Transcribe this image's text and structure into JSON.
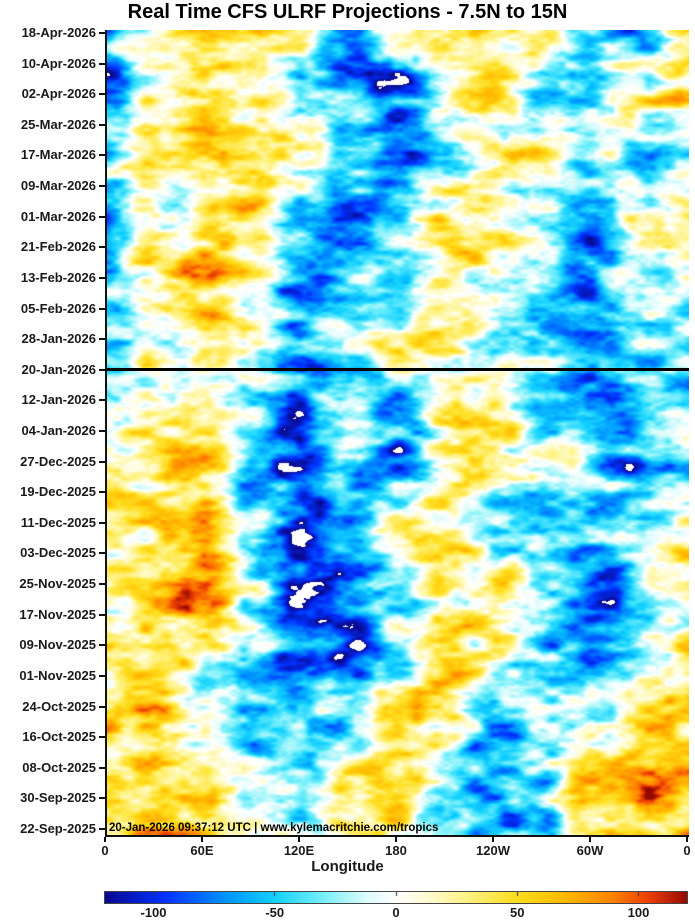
{
  "title": "Real Time CFS ULRF Projections - 7.5N to 15N",
  "watermark": "20-Jan-2026 09:37:12 UTC | www.kylemacritchie.com/tropics",
  "x_axis": {
    "label": "Longitude",
    "ticks": [
      "0",
      "60E",
      "120E",
      "180",
      "120W",
      "60W",
      "0"
    ]
  },
  "y_axis": {
    "ticks": [
      "18-Apr-2026",
      "10-Apr-2026",
      "02-Apr-2026",
      "25-Mar-2026",
      "17-Mar-2026",
      "09-Mar-2026",
      "01-Mar-2026",
      "21-Feb-2026",
      "13-Feb-2026",
      "05-Feb-2026",
      "28-Jan-2026",
      "20-Jan-2026",
      "12-Jan-2026",
      "04-Jan-2026",
      "27-Dec-2025",
      "19-Dec-2025",
      "11-Dec-2025",
      "03-Dec-2025",
      "25-Nov-2025",
      "17-Nov-2025",
      "09-Nov-2025",
      "01-Nov-2025",
      "24-Oct-2025",
      "16-Oct-2025",
      "08-Oct-2025",
      "30-Sep-2025",
      "22-Sep-2025"
    ]
  },
  "current_time_line": {
    "date": "20-Jan-2026",
    "color": "#000000"
  },
  "colorbar": {
    "tick_labels": [
      "-100",
      "-50",
      "0",
      "50",
      "100"
    ],
    "tick_values": [
      -100,
      -50,
      0,
      50,
      100
    ],
    "range": [
      -120,
      120
    ]
  },
  "colors": {
    "background": "#ffffff",
    "axis": "#111111",
    "text": "#1a1a1a",
    "negative_extreme": "#0a0a91",
    "negative_mid": "#14d2ff",
    "zero": "#ffffff",
    "positive_mid": "#ffde1e",
    "positive_extreme": "#960a00"
  },
  "chart_data": {
    "type": "heatmap",
    "title": "Real Time CFS ULRF Projections - 7.5N to 15N",
    "xlabel": "Longitude",
    "ylabel": "",
    "x_ticks": [
      "0",
      "60E",
      "120E",
      "180",
      "120W",
      "60W",
      "0"
    ],
    "x_range_degrees_east": [
      0,
      360
    ],
    "y_dates_top_to_bottom": [
      "18-Apr-2026",
      "10-Apr-2026",
      "02-Apr-2026",
      "25-Mar-2026",
      "17-Mar-2026",
      "09-Mar-2026",
      "01-Mar-2026",
      "21-Feb-2026",
      "13-Feb-2026",
      "05-Feb-2026",
      "28-Jan-2026",
      "20-Jan-2026",
      "12-Jan-2026",
      "04-Jan-2026",
      "27-Dec-2025",
      "19-Dec-2025",
      "11-Dec-2025",
      "03-Dec-2025",
      "25-Nov-2025",
      "17-Nov-2025",
      "09-Nov-2025",
      "01-Nov-2025",
      "24-Oct-2025",
      "16-Oct-2025",
      "08-Oct-2025",
      "30-Sep-2025",
      "22-Sep-2025"
    ],
    "y_tick_interval_days": 8,
    "current_time_marker": "20-Jan-2026",
    "grid": false,
    "legend_position": "bottom-colorbar",
    "colorbar_range": [
      -120,
      120
    ],
    "colorbar_ticks": [
      -100,
      -50,
      0,
      50,
      100
    ],
    "colormap_stops": [
      {
        "v": -120,
        "rgb": [
          10,
          10,
          145
        ]
      },
      {
        "v": -95,
        "rgb": [
          0,
          50,
          255
        ]
      },
      {
        "v": -70,
        "rgb": [
          0,
          150,
          255
        ]
      },
      {
        "v": -50,
        "rgb": [
          20,
          210,
          255
        ]
      },
      {
        "v": -30,
        "rgb": [
          120,
          240,
          250
        ]
      },
      {
        "v": -12,
        "rgb": [
          222,
          252,
          252
        ]
      },
      {
        "v": 0,
        "rgb": [
          255,
          255,
          255
        ]
      },
      {
        "v": 12,
        "rgb": [
          255,
          252,
          215
        ]
      },
      {
        "v": 30,
        "rgb": [
          255,
          242,
          130
        ]
      },
      {
        "v": 50,
        "rgb": [
          255,
          222,
          30
        ]
      },
      {
        "v": 70,
        "rgb": [
          255,
          185,
          0
        ]
      },
      {
        "v": 90,
        "rgb": [
          255,
          130,
          0
        ]
      },
      {
        "v": 105,
        "rgb": [
          235,
          60,
          0
        ]
      },
      {
        "v": 120,
        "rgb": [
          150,
          10,
          0
        ]
      }
    ],
    "approx_values_grid": {
      "description": "Approximate ULRF anomaly field read from the plot, sampled every 30 deg longitude (columns, 0E..360) and ~15 days (rows, newest/top first). Negative = blue (suppressed), positive = yellow/orange (enhanced).",
      "columns_longitude_deg_east": [
        0,
        30,
        60,
        90,
        120,
        150,
        180,
        210,
        240,
        270,
        300,
        330,
        360
      ],
      "rows_dates_top_to_bottom": [
        "18-Apr-2026",
        "02-Apr-2026",
        "17-Mar-2026",
        "01-Mar-2026",
        "13-Feb-2026",
        "28-Jan-2026",
        "12-Jan-2026",
        "27-Dec-2025",
        "11-Dec-2025",
        "25-Nov-2025",
        "09-Nov-2025",
        "24-Oct-2025",
        "08-Oct-2025",
        "22-Sep-2025"
      ],
      "values": [
        [
          -40,
          10,
          45,
          55,
          35,
          -75,
          0,
          25,
          40,
          25,
          -25,
          -70,
          25
        ],
        [
          -55,
          25,
          60,
          30,
          -20,
          -50,
          -85,
          10,
          35,
          -30,
          -45,
          20,
          35
        ],
        [
          -25,
          15,
          45,
          55,
          20,
          -40,
          -70,
          -20,
          25,
          30,
          -20,
          -45,
          -25
        ],
        [
          -45,
          5,
          30,
          45,
          -30,
          -60,
          -35,
          15,
          30,
          -25,
          -55,
          15,
          25
        ],
        [
          -25,
          20,
          50,
          25,
          -75,
          -55,
          -25,
          25,
          15,
          -35,
          -65,
          -25,
          -15
        ],
        [
          -30,
          10,
          30,
          15,
          -45,
          -25,
          15,
          20,
          -20,
          -30,
          -45,
          -25,
          -30
        ],
        [
          -20,
          15,
          30,
          -25,
          -65,
          -45,
          -55,
          15,
          25,
          -25,
          -50,
          -55,
          -30
        ],
        [
          15,
          30,
          40,
          -35,
          -90,
          -35,
          -65,
          25,
          35,
          15,
          -40,
          -65,
          -20
        ],
        [
          25,
          40,
          50,
          -25,
          -95,
          -45,
          25,
          35,
          -25,
          -40,
          -55,
          -25,
          15
        ],
        [
          15,
          45,
          55,
          -15,
          -85,
          -65,
          -35,
          25,
          35,
          -20,
          -75,
          -35,
          25
        ],
        [
          25,
          55,
          35,
          -25,
          -75,
          -85,
          -25,
          35,
          25,
          -30,
          -65,
          -45,
          15
        ],
        [
          35,
          45,
          -35,
          -55,
          -45,
          -25,
          35,
          45,
          -35,
          -45,
          -25,
          35,
          45
        ],
        [
          40,
          50,
          35,
          -25,
          -40,
          30,
          45,
          -30,
          -55,
          -25,
          35,
          55,
          35
        ],
        [
          30,
          55,
          45,
          25,
          -25,
          35,
          45,
          -35,
          -55,
          -25,
          35,
          50,
          40
        ]
      ]
    }
  }
}
